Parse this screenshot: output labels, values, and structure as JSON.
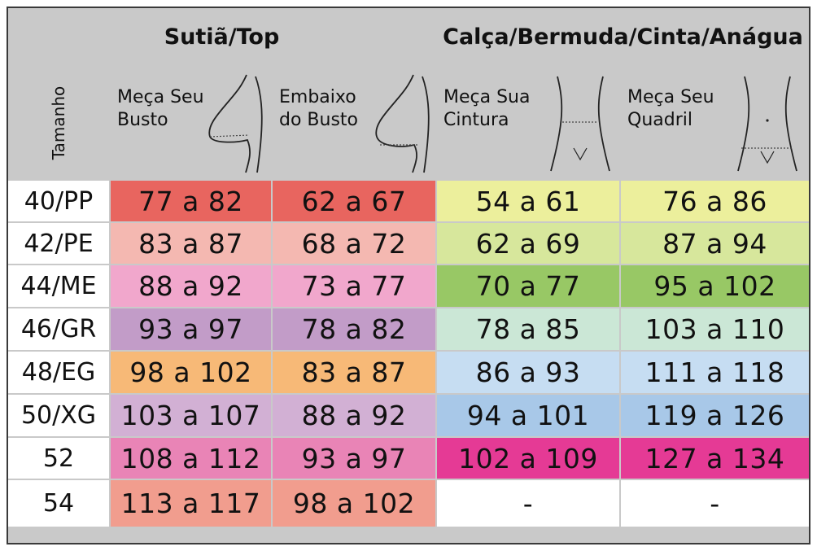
{
  "header": {
    "group1": "Sutiã/Top",
    "group2": "Calça/Bermuda/Cinta/Anágua",
    "size_label": "Tamanho",
    "col1": [
      "Meça Seu",
      "Busto"
    ],
    "col2": [
      "Embaixo",
      "do Busto"
    ],
    "col3": [
      "Meça Sua",
      "Cintura"
    ],
    "col4": [
      "Meça Seu",
      "Quadril"
    ]
  },
  "rows": [
    {
      "size": "40/PP",
      "busto": "77 a 82",
      "embaixo": "62 a 67",
      "cintura": "54 a 61",
      "quadril": "76 a 86"
    },
    {
      "size": "42/PE",
      "busto": "83 a 87",
      "embaixo": "68 a 72",
      "cintura": "62 a 69",
      "quadril": "87 a 94"
    },
    {
      "size": "44/ME",
      "busto": "88 a 92",
      "embaixo": "73 a 77",
      "cintura": "70 a 77",
      "quadril": "95 a 102"
    },
    {
      "size": "46/GR",
      "busto": "93 a 97",
      "embaixo": "78 a 82",
      "cintura": "78 a 85",
      "quadril": "103 a 110"
    },
    {
      "size": "48/EG",
      "busto": "98 a 102",
      "embaixo": "83 a 87",
      "cintura": "86 a 93",
      "quadril": "111 a 118"
    },
    {
      "size": "50/XG",
      "busto": "103 a 107",
      "embaixo": "88 a 92",
      "cintura": "94 a 101",
      "quadril": "119 a 126"
    },
    {
      "size": "52",
      "busto": "108 a 112",
      "embaixo": "93 a 97",
      "cintura": "102 a 109",
      "quadril": "127 a 134"
    },
    {
      "size": "54",
      "busto": "113 a 117",
      "embaixo": "98 a 102",
      "cintura": "-",
      "quadril": "-"
    }
  ],
  "colors": {
    "header_bg": "#c9c9c9",
    "size_bg": "#ffffff",
    "busto": [
      "#e8655f",
      "#f4b8b1",
      "#f1a7cc",
      "#c29cc8",
      "#f7b977",
      "#d2b0d4",
      "#e984b6",
      "#f19d8e"
    ],
    "embaixo": [
      "#e8655f",
      "#f4b8b1",
      "#f1a7cc",
      "#c29cc8",
      "#f7b977",
      "#d2b0d4",
      "#e984b6",
      "#f19d8e"
    ],
    "cintura": [
      "#ecef9c",
      "#d7e79c",
      "#98c865",
      "#cbe7d6",
      "#c6ddf2",
      "#a8c8e8",
      "#e53a95",
      "#ffffff"
    ],
    "quadril": [
      "#ecef9c",
      "#d7e79c",
      "#98c865",
      "#cbe7d6",
      "#c6ddf2",
      "#a8c8e8",
      "#e53a95",
      "#ffffff"
    ]
  },
  "icons": {
    "busto": "bust-profile-icon",
    "embaixo": "underbust-profile-icon",
    "cintura": "waist-front-icon",
    "quadril": "hip-front-icon"
  }
}
